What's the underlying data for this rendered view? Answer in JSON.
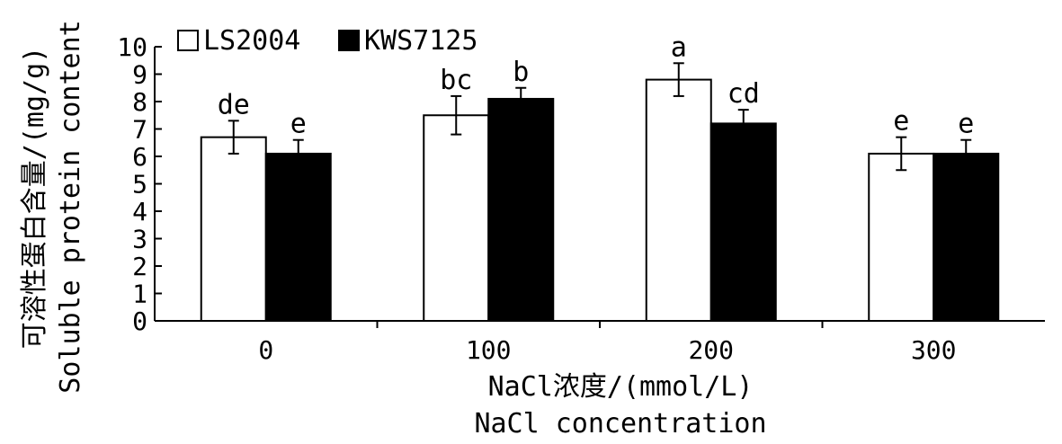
{
  "chart_data": {
    "type": "bar",
    "categories": [
      "0",
      "100",
      "200",
      "300"
    ],
    "series": [
      {
        "name": "LS2004",
        "values": [
          6.7,
          7.5,
          8.8,
          6.1
        ],
        "errors": [
          0.6,
          0.7,
          0.6,
          0.6
        ],
        "letters": [
          "de",
          "bc",
          "a",
          "e"
        ],
        "color": "#ffffff"
      },
      {
        "name": "KWS7125",
        "values": [
          6.1,
          8.1,
          7.2,
          6.1
        ],
        "errors": [
          0.5,
          0.4,
          0.5,
          0.5
        ],
        "letters": [
          "e",
          "b",
          "cd",
          "e"
        ],
        "color": "#000000"
      }
    ],
    "ylabel_cn": "可溶性蛋白含量/(mg/g)",
    "ylabel_en": "Soluble protein content",
    "xlabel_cn": "NaCl浓度/(mmol/L)",
    "xlabel_en": "NaCl concentration",
    "ylim": [
      0,
      10
    ],
    "yticks": [
      "0",
      "1",
      "2",
      "3",
      "4",
      "5",
      "6",
      "7",
      "8",
      "9",
      "10"
    ],
    "grid": false,
    "legend_position": "top-left"
  }
}
